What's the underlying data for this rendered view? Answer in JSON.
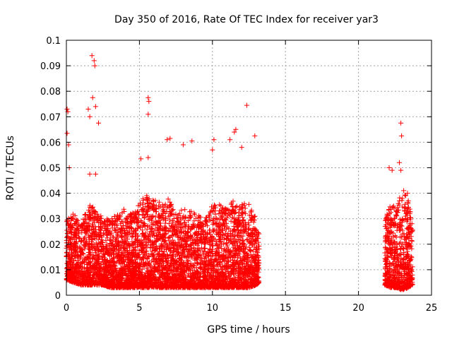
{
  "chart_data": {
    "type": "scatter",
    "title": "Day 350 of 2016, Rate Of TEC Index for receiver yar3",
    "xlabel": "GPS time / hours",
    "ylabel": "ROTI / TECUs",
    "xlim": [
      0,
      25
    ],
    "ylim": [
      0,
      0.1
    ],
    "x_ticks": [
      0,
      5,
      10,
      15,
      20,
      25
    ],
    "x_tick_labels": [
      "0",
      "5",
      "10",
      "15",
      "20",
      "25"
    ],
    "y_ticks": [
      0,
      0.01,
      0.02,
      0.03,
      0.04,
      0.05,
      0.06,
      0.07,
      0.08,
      0.09,
      0.1
    ],
    "y_tick_labels": [
      "0",
      "0.01",
      "0.02",
      "0.03",
      "0.04",
      "0.05",
      "0.06",
      "0.07",
      "0.08",
      "0.09",
      "0.1"
    ],
    "grid": true,
    "marker": "plus",
    "color": "#ff0000",
    "segments": [
      {
        "x_start": 0.0,
        "x_end": 13.2
      },
      {
        "x_start": 21.8,
        "x_end": 23.7
      }
    ],
    "notable_points": [
      {
        "x": 1.75,
        "y": 0.094
      },
      {
        "x": 1.9,
        "y": 0.092
      },
      {
        "x": 1.95,
        "y": 0.09
      },
      {
        "x": 1.8,
        "y": 0.0775
      },
      {
        "x": 2.0,
        "y": 0.074
      },
      {
        "x": 0.05,
        "y": 0.073
      },
      {
        "x": 0.1,
        "y": 0.072
      },
      {
        "x": 1.5,
        "y": 0.073
      },
      {
        "x": 1.6,
        "y": 0.07
      },
      {
        "x": 2.2,
        "y": 0.0675
      },
      {
        "x": 5.6,
        "y": 0.0775
      },
      {
        "x": 5.65,
        "y": 0.076
      },
      {
        "x": 5.6,
        "y": 0.071
      },
      {
        "x": 12.35,
        "y": 0.0745
      },
      {
        "x": 12.9,
        "y": 0.0625
      },
      {
        "x": 0.05,
        "y": 0.0635
      },
      {
        "x": 0.15,
        "y": 0.059
      },
      {
        "x": 11.6,
        "y": 0.065
      },
      {
        "x": 11.5,
        "y": 0.064
      },
      {
        "x": 10.1,
        "y": 0.061
      },
      {
        "x": 7.1,
        "y": 0.0615
      },
      {
        "x": 6.9,
        "y": 0.061
      },
      {
        "x": 8.6,
        "y": 0.0605
      },
      {
        "x": 11.2,
        "y": 0.061
      },
      {
        "x": 8.0,
        "y": 0.059
      },
      {
        "x": 10.0,
        "y": 0.057
      },
      {
        "x": 12.0,
        "y": 0.058
      },
      {
        "x": 5.1,
        "y": 0.0535
      },
      {
        "x": 5.6,
        "y": 0.054
      },
      {
        "x": 22.9,
        "y": 0.0675
      },
      {
        "x": 22.95,
        "y": 0.0625
      },
      {
        "x": 22.8,
        "y": 0.052
      },
      {
        "x": 22.1,
        "y": 0.05
      },
      {
        "x": 22.3,
        "y": 0.049
      },
      {
        "x": 22.9,
        "y": 0.049
      },
      {
        "x": 23.35,
        "y": 0.04
      },
      {
        "x": 0.2,
        "y": 0.05
      },
      {
        "x": 1.6,
        "y": 0.0475
      },
      {
        "x": 2.0,
        "y": 0.0475
      }
    ],
    "density_profile": [
      {
        "x": 0.0,
        "low": 0.006,
        "high": 0.03
      },
      {
        "x": 0.5,
        "low": 0.005,
        "high": 0.032
      },
      {
        "x": 1.0,
        "low": 0.004,
        "high": 0.028
      },
      {
        "x": 1.5,
        "low": 0.004,
        "high": 0.036
      },
      {
        "x": 2.0,
        "low": 0.004,
        "high": 0.034
      },
      {
        "x": 2.5,
        "low": 0.004,
        "high": 0.03
      },
      {
        "x": 3.0,
        "low": 0.003,
        "high": 0.03
      },
      {
        "x": 3.5,
        "low": 0.003,
        "high": 0.032
      },
      {
        "x": 4.0,
        "low": 0.003,
        "high": 0.034
      },
      {
        "x": 4.5,
        "low": 0.003,
        "high": 0.032
      },
      {
        "x": 5.0,
        "low": 0.003,
        "high": 0.036
      },
      {
        "x": 5.5,
        "low": 0.003,
        "high": 0.04
      },
      {
        "x": 6.0,
        "low": 0.003,
        "high": 0.038
      },
      {
        "x": 6.5,
        "low": 0.003,
        "high": 0.036
      },
      {
        "x": 7.0,
        "low": 0.003,
        "high": 0.038
      },
      {
        "x": 7.5,
        "low": 0.003,
        "high": 0.032
      },
      {
        "x": 8.0,
        "low": 0.003,
        "high": 0.034
      },
      {
        "x": 8.5,
        "low": 0.003,
        "high": 0.034
      },
      {
        "x": 9.0,
        "low": 0.003,
        "high": 0.032
      },
      {
        "x": 9.5,
        "low": 0.003,
        "high": 0.03
      },
      {
        "x": 10.0,
        "low": 0.003,
        "high": 0.036
      },
      {
        "x": 10.5,
        "low": 0.003,
        "high": 0.036
      },
      {
        "x": 11.0,
        "low": 0.003,
        "high": 0.034
      },
      {
        "x": 11.5,
        "low": 0.003,
        "high": 0.038
      },
      {
        "x": 12.0,
        "low": 0.003,
        "high": 0.036
      },
      {
        "x": 12.5,
        "low": 0.003,
        "high": 0.036
      },
      {
        "x": 13.0,
        "low": 0.004,
        "high": 0.03
      },
      {
        "x": 13.2,
        "low": 0.005,
        "high": 0.024
      },
      {
        "x": 21.8,
        "low": 0.004,
        "high": 0.03
      },
      {
        "x": 22.2,
        "low": 0.003,
        "high": 0.036
      },
      {
        "x": 22.6,
        "low": 0.003,
        "high": 0.034
      },
      {
        "x": 23.0,
        "low": 0.002,
        "high": 0.042
      },
      {
        "x": 23.4,
        "low": 0.003,
        "high": 0.038
      },
      {
        "x": 23.7,
        "low": 0.004,
        "high": 0.028
      }
    ]
  }
}
